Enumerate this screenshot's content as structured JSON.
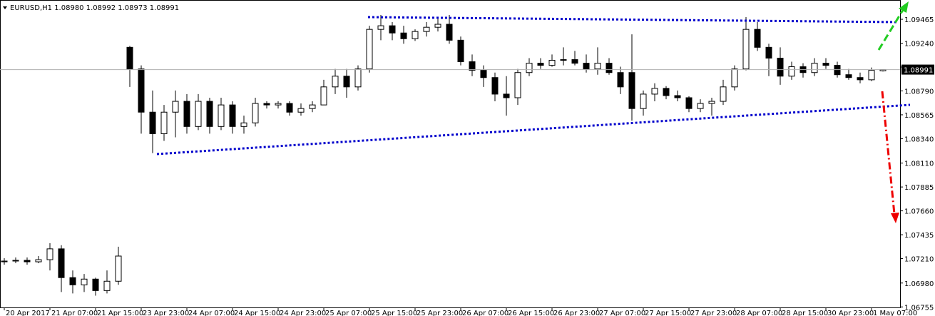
{
  "chart_data": {
    "type": "candlestick",
    "title": "EURUSD,H1  1.08980 1.08992 1.08973 1.08991",
    "categories": [
      "20 Apr 2017",
      null,
      null,
      null,
      "21 Apr 07:00",
      null,
      null,
      null,
      "21 Apr 15:00",
      null,
      null,
      null,
      "23 Apr 23:00",
      null,
      null,
      null,
      "24 Apr 07:00",
      null,
      null,
      null,
      "24 Apr 15:00",
      null,
      null,
      null,
      "24 Apr 23:00",
      null,
      null,
      null,
      "25 Apr 07:00",
      null,
      null,
      null,
      "25 Apr 15:00",
      null,
      null,
      null,
      "25 Apr 23:00",
      null,
      null,
      null,
      "26 Apr 07:00",
      null,
      null,
      null,
      "26 Apr 15:00",
      null,
      null,
      null,
      "26 Apr 23:00",
      null,
      null,
      null,
      "27 Apr 07:00",
      null,
      null,
      null,
      "27 Apr 15:00",
      null,
      null,
      null,
      "27 Apr 23:00",
      null,
      null,
      null,
      "28 Apr 07:00",
      null,
      null,
      null,
      "28 Apr 15:00",
      null,
      null,
      null,
      "30 Apr 23:00",
      null,
      null,
      null,
      "1 May 07:00",
      null
    ],
    "open": [
      1.0718,
      1.07187,
      1.07194,
      1.0718,
      1.072,
      1.07302,
      1.07031,
      1.06963,
      1.07017,
      1.06909,
      1.06997,
      1.09201,
      1.08997,
      1.0859,
      1.08387,
      1.0859,
      1.08692,
      1.08455,
      1.08692,
      1.08455,
      1.08658,
      1.08455,
      1.08489,
      1.08672,
      1.08658,
      1.08672,
      1.0859,
      1.08624,
      1.08658,
      1.08828,
      1.08929,
      1.08828,
      1.08997,
      1.0937,
      1.09404,
      1.09336,
      1.09282,
      1.0935,
      1.0939,
      1.09418,
      1.09268,
      1.09065,
      1.08984,
      1.08916,
      1.0876,
      1.08726,
      1.08963,
      1.09051,
      1.09031,
      1.09079,
      1.09085,
      1.09051,
      1.08997,
      1.09051,
      1.08963,
      1.08963,
      1.08624,
      1.0876,
      1.08814,
      1.08746,
      1.08726,
      1.08624,
      1.08672,
      1.08692,
      1.08828,
      1.08997,
      1.0937,
      1.09201,
      1.09099,
      1.08929,
      1.09018,
      1.08963,
      1.09051,
      1.09031,
      1.08943,
      1.08916,
      1.08895,
      1.0898
    ],
    "high": [
      1.07214,
      1.07221,
      1.07221,
      1.07234,
      1.07356,
      1.07336,
      1.07099,
      1.07065,
      1.07031,
      1.07099,
      1.07322,
      1.09214,
      1.09031,
      1.08794,
      1.08658,
      1.08794,
      1.0876,
      1.0876,
      1.08726,
      1.08726,
      1.08692,
      1.08557,
      1.08726,
      1.08692,
      1.08692,
      1.08692,
      1.08672,
      1.08692,
      1.08895,
      1.08997,
      1.08997,
      1.09031,
      1.09404,
      1.09506,
      1.09438,
      1.09404,
      1.0937,
      1.09438,
      1.09472,
      1.09506,
      1.09302,
      1.09133,
      1.09031,
      1.08963,
      1.08929,
      1.08997,
      1.09099,
      1.09099,
      1.09133,
      1.09201,
      1.09167,
      1.09133,
      1.09201,
      1.09099,
      1.09018,
      1.09323,
      1.08794,
      1.08862,
      1.08835,
      1.08794,
      1.0874,
      1.08712,
      1.08726,
      1.08895,
      1.09031,
      1.09485,
      1.09438,
      1.09234,
      1.09201,
      1.09065,
      1.09051,
      1.09099,
      1.09099,
      1.09065,
      1.08997,
      1.08963,
      1.09011,
      1.08992
    ],
    "low": [
      1.07153,
      1.07167,
      1.07153,
      1.07167,
      1.07099,
      1.06895,
      1.06882,
      1.06895,
      1.06861,
      1.06882,
      1.06963,
      1.08828,
      1.08387,
      1.08204,
      1.08319,
      1.08353,
      1.08387,
      1.08421,
      1.08387,
      1.08421,
      1.08387,
      1.08387,
      1.08455,
      1.08624,
      1.08624,
      1.08557,
      1.08557,
      1.0859,
      1.08658,
      1.0876,
      1.08726,
      1.08794,
      1.08963,
      1.09268,
      1.09268,
      1.09234,
      1.09261,
      1.09302,
      1.0935,
      1.09234,
      1.09031,
      1.08929,
      1.08828,
      1.08692,
      1.08557,
      1.08658,
      1.08929,
      1.08997,
      1.09018,
      1.09031,
      1.09031,
      1.08963,
      1.08943,
      1.08943,
      1.0876,
      1.08509,
      1.08557,
      1.08692,
      1.08712,
      1.08692,
      1.0859,
      1.0859,
      1.08557,
      1.08658,
      1.08794,
      1.08984,
      1.09167,
      1.08929,
      1.08848,
      1.08895,
      1.08916,
      1.08929,
      1.08997,
      1.08916,
      1.08895,
      1.08862,
      1.08882,
      1.08973
    ],
    "close": [
      1.07187,
      1.07194,
      1.0718,
      1.072,
      1.07302,
      1.07031,
      1.06963,
      1.07017,
      1.06909,
      1.06997,
      1.07234,
      1.08997,
      1.0859,
      1.08387,
      1.0859,
      1.08692,
      1.08455,
      1.08692,
      1.08455,
      1.08658,
      1.08455,
      1.08489,
      1.08672,
      1.08658,
      1.08672,
      1.0859,
      1.08624,
      1.08658,
      1.08828,
      1.08929,
      1.08828,
      1.08997,
      1.0937,
      1.09404,
      1.09336,
      1.09282,
      1.0935,
      1.0939,
      1.09418,
      1.09268,
      1.09065,
      1.08984,
      1.08916,
      1.0876,
      1.08726,
      1.08963,
      1.09051,
      1.09031,
      1.09079,
      1.09085,
      1.09051,
      1.08997,
      1.09051,
      1.08963,
      1.08828,
      1.08624,
      1.0876,
      1.08814,
      1.08746,
      1.08726,
      1.08624,
      1.08672,
      1.08692,
      1.08828,
      1.08997,
      1.0937,
      1.09201,
      1.09099,
      1.08929,
      1.09018,
      1.08963,
      1.09051,
      1.09031,
      1.08943,
      1.08916,
      1.08895,
      1.08984,
      1.08991
    ],
    "up_color": "#ffffff",
    "down_color": "#000000",
    "last_price": 1.08991,
    "ylim": [
      1.0675,
      1.0964
    ],
    "yticks": [
      1.09465,
      {
        "value": 1.0924,
        "label": "1.09240"
      },
      1.09015,
      {
        "value": 1.0879,
        "label": "1.08790"
      },
      1.08565,
      {
        "value": 1.0834,
        "label": "1.08340"
      },
      {
        "value": 1.0811,
        "label": "1.08110"
      },
      1.07885,
      {
        "value": 1.0766,
        "label": "1.07660"
      },
      1.07435,
      {
        "value": 1.0721,
        "label": "1.07210"
      },
      {
        "value": 1.0698,
        "label": "1.06980"
      },
      1.06755
    ]
  }
}
